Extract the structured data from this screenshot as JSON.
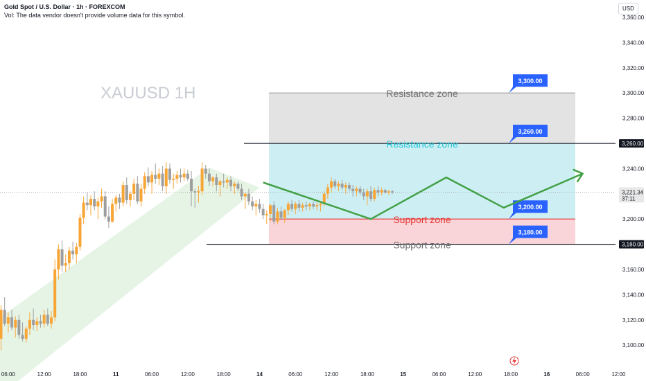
{
  "header": {
    "title": "Gold Spot / U.S. Dollar · 1h · FOREXCOM",
    "volume_note": "Vol: The data vendor doesn't provide volume data for this symbol.",
    "currency_button": "USD"
  },
  "colors": {
    "bull": "#f7a535",
    "bear": "#9e9e9e",
    "channel": "#e6f4e6",
    "resistance_upper": "#e3e3e3",
    "resistance_lower": "#cdeff3",
    "support": "#f9d4d8",
    "arrow": "#43a047",
    "label_badge": "#2962ff",
    "support_text": "#e53935",
    "resistance_text": "#26c6da"
  },
  "chart_data": {
    "type": "candlestick",
    "symbol_watermark": "XAUUSD 1H",
    "ylim": [
      3090,
      3365
    ],
    "y_ticks": [
      3100,
      3120,
      3140,
      3160,
      3180,
      3200,
      3220,
      3240,
      3260,
      3280,
      3300,
      3320,
      3340,
      3360
    ],
    "y_tick_labels": [
      "3,100.00",
      "3,120.00",
      "3,140.00",
      "3,160.00",
      "3,180.00",
      "3,200.00",
      "3,220.00",
      "3,240.00",
      "3,260.00",
      "3,280.00",
      "3,300.00",
      "3,320.00",
      "3,340.00",
      "3,360.00"
    ],
    "x_tick_labels": [
      "06:00",
      "12:00",
      "18:00",
      "11",
      "06:00",
      "12:00",
      "18:00",
      "14",
      "06:00",
      "12:00",
      "18:00",
      "15",
      "06:00",
      "12:00",
      "18:00",
      "16",
      "06:00",
      "12:00"
    ],
    "x_tick_slots": [
      2,
      12,
      22,
      32,
      42,
      52,
      62,
      72,
      82,
      92,
      102,
      112,
      122,
      132,
      142,
      152,
      162,
      172
    ],
    "candles": [
      {
        "o": 3105,
        "h": 3132,
        "l": 3096,
        "c": 3128
      },
      {
        "o": 3128,
        "h": 3138,
        "l": 3115,
        "c": 3117
      },
      {
        "o": 3117,
        "h": 3126,
        "l": 3110,
        "c": 3122
      },
      {
        "o": 3122,
        "h": 3128,
        "l": 3112,
        "c": 3114
      },
      {
        "o": 3114,
        "h": 3123,
        "l": 3106,
        "c": 3120
      },
      {
        "o": 3120,
        "h": 3124,
        "l": 3105,
        "c": 3108
      },
      {
        "o": 3108,
        "h": 3118,
        "l": 3103,
        "c": 3105
      },
      {
        "o": 3105,
        "h": 3115,
        "l": 3102,
        "c": 3113
      },
      {
        "o": 3113,
        "h": 3126,
        "l": 3108,
        "c": 3120
      },
      {
        "o": 3120,
        "h": 3129,
        "l": 3112,
        "c": 3116
      },
      {
        "o": 3116,
        "h": 3122,
        "l": 3111,
        "c": 3119
      },
      {
        "o": 3119,
        "h": 3124,
        "l": 3114,
        "c": 3117
      },
      {
        "o": 3117,
        "h": 3128,
        "l": 3114,
        "c": 3124
      },
      {
        "o": 3124,
        "h": 3129,
        "l": 3115,
        "c": 3117
      },
      {
        "o": 3117,
        "h": 3127,
        "l": 3113,
        "c": 3122
      },
      {
        "o": 3122,
        "h": 3168,
        "l": 3119,
        "c": 3160
      },
      {
        "o": 3160,
        "h": 3180,
        "l": 3152,
        "c": 3176
      },
      {
        "o": 3176,
        "h": 3183,
        "l": 3158,
        "c": 3163
      },
      {
        "o": 3163,
        "h": 3172,
        "l": 3158,
        "c": 3165
      },
      {
        "o": 3165,
        "h": 3178,
        "l": 3160,
        "c": 3175
      },
      {
        "o": 3175,
        "h": 3182,
        "l": 3168,
        "c": 3172
      },
      {
        "o": 3172,
        "h": 3181,
        "l": 3165,
        "c": 3178
      },
      {
        "o": 3178,
        "h": 3204,
        "l": 3175,
        "c": 3201
      },
      {
        "o": 3201,
        "h": 3218,
        "l": 3196,
        "c": 3213
      },
      {
        "o": 3213,
        "h": 3221,
        "l": 3207,
        "c": 3211
      },
      {
        "o": 3211,
        "h": 3219,
        "l": 3203,
        "c": 3216
      },
      {
        "o": 3216,
        "h": 3222,
        "l": 3207,
        "c": 3210
      },
      {
        "o": 3210,
        "h": 3217,
        "l": 3200,
        "c": 3214
      },
      {
        "o": 3214,
        "h": 3224,
        "l": 3209,
        "c": 3218
      },
      {
        "o": 3218,
        "h": 3222,
        "l": 3200,
        "c": 3202
      },
      {
        "o": 3202,
        "h": 3210,
        "l": 3193,
        "c": 3198
      },
      {
        "o": 3198,
        "h": 3216,
        "l": 3197,
        "c": 3212
      },
      {
        "o": 3212,
        "h": 3219,
        "l": 3206,
        "c": 3217
      },
      {
        "o": 3217,
        "h": 3220,
        "l": 3208,
        "c": 3213
      },
      {
        "o": 3213,
        "h": 3230,
        "l": 3210,
        "c": 3227
      },
      {
        "o": 3227,
        "h": 3233,
        "l": 3212,
        "c": 3215
      },
      {
        "o": 3215,
        "h": 3222,
        "l": 3210,
        "c": 3220
      },
      {
        "o": 3220,
        "h": 3232,
        "l": 3215,
        "c": 3228
      },
      {
        "o": 3228,
        "h": 3234,
        "l": 3212,
        "c": 3214
      },
      {
        "o": 3214,
        "h": 3228,
        "l": 3210,
        "c": 3224
      },
      {
        "o": 3224,
        "h": 3237,
        "l": 3220,
        "c": 3234
      },
      {
        "o": 3234,
        "h": 3241,
        "l": 3226,
        "c": 3229
      },
      {
        "o": 3229,
        "h": 3238,
        "l": 3220,
        "c": 3235
      },
      {
        "o": 3235,
        "h": 3244,
        "l": 3228,
        "c": 3232
      },
      {
        "o": 3232,
        "h": 3240,
        "l": 3227,
        "c": 3236
      },
      {
        "o": 3236,
        "h": 3242,
        "l": 3222,
        "c": 3226
      },
      {
        "o": 3226,
        "h": 3245,
        "l": 3220,
        "c": 3240
      },
      {
        "o": 3240,
        "h": 3244,
        "l": 3228,
        "c": 3231
      },
      {
        "o": 3231,
        "h": 3236,
        "l": 3224,
        "c": 3232
      },
      {
        "o": 3232,
        "h": 3238,
        "l": 3228,
        "c": 3235
      },
      {
        "o": 3235,
        "h": 3240,
        "l": 3229,
        "c": 3233
      },
      {
        "o": 3233,
        "h": 3240,
        "l": 3230,
        "c": 3236
      },
      {
        "o": 3236,
        "h": 3239,
        "l": 3230,
        "c": 3232
      },
      {
        "o": 3232,
        "h": 3238,
        "l": 3210,
        "c": 3222
      },
      {
        "o": 3222,
        "h": 3224,
        "l": 3209,
        "c": 3221
      },
      {
        "o": 3221,
        "h": 3226,
        "l": 3213,
        "c": 3222
      },
      {
        "o": 3222,
        "h": 3245,
        "l": 3219,
        "c": 3240
      },
      {
        "o": 3240,
        "h": 3243,
        "l": 3232,
        "c": 3236
      },
      {
        "o": 3236,
        "h": 3240,
        "l": 3226,
        "c": 3230
      },
      {
        "o": 3230,
        "h": 3234,
        "l": 3226,
        "c": 3233
      },
      {
        "o": 3233,
        "h": 3236,
        "l": 3222,
        "c": 3227
      },
      {
        "o": 3227,
        "h": 3231,
        "l": 3218,
        "c": 3230
      },
      {
        "o": 3230,
        "h": 3236,
        "l": 3225,
        "c": 3229
      },
      {
        "o": 3229,
        "h": 3233,
        "l": 3224,
        "c": 3231
      },
      {
        "o": 3231,
        "h": 3234,
        "l": 3222,
        "c": 3226
      },
      {
        "o": 3226,
        "h": 3230,
        "l": 3220,
        "c": 3228
      },
      {
        "o": 3228,
        "h": 3230,
        "l": 3222,
        "c": 3224
      },
      {
        "o": 3224,
        "h": 3228,
        "l": 3215,
        "c": 3218
      },
      {
        "o": 3218,
        "h": 3221,
        "l": 3208,
        "c": 3220
      },
      {
        "o": 3220,
        "h": 3224,
        "l": 3211,
        "c": 3214
      },
      {
        "o": 3214,
        "h": 3218,
        "l": 3207,
        "c": 3210
      },
      {
        "o": 3210,
        "h": 3215,
        "l": 3203,
        "c": 3212
      },
      {
        "o": 3212,
        "h": 3216,
        "l": 3205,
        "c": 3208
      },
      {
        "o": 3208,
        "h": 3212,
        "l": 3200,
        "c": 3203
      },
      {
        "o": 3203,
        "h": 3207,
        "l": 3196,
        "c": 3204
      },
      {
        "o": 3204,
        "h": 3212,
        "l": 3198,
        "c": 3211
      },
      {
        "o": 3211,
        "h": 3214,
        "l": 3196,
        "c": 3198
      },
      {
        "o": 3198,
        "h": 3209,
        "l": 3196,
        "c": 3206
      },
      {
        "o": 3206,
        "h": 3210,
        "l": 3199,
        "c": 3201
      },
      {
        "o": 3201,
        "h": 3208,
        "l": 3197,
        "c": 3207
      },
      {
        "o": 3207,
        "h": 3214,
        "l": 3203,
        "c": 3212
      },
      {
        "o": 3212,
        "h": 3215,
        "l": 3206,
        "c": 3208
      },
      {
        "o": 3208,
        "h": 3214,
        "l": 3204,
        "c": 3212
      },
      {
        "o": 3212,
        "h": 3215,
        "l": 3206,
        "c": 3209
      },
      {
        "o": 3209,
        "h": 3213,
        "l": 3206,
        "c": 3211
      },
      {
        "o": 3211,
        "h": 3214,
        "l": 3207,
        "c": 3210
      },
      {
        "o": 3210,
        "h": 3213,
        "l": 3207,
        "c": 3212
      },
      {
        "o": 3212,
        "h": 3214,
        "l": 3208,
        "c": 3210
      },
      {
        "o": 3210,
        "h": 3213,
        "l": 3207,
        "c": 3211
      },
      {
        "o": 3211,
        "h": 3214,
        "l": 3206,
        "c": 3212
      },
      {
        "o": 3212,
        "h": 3222,
        "l": 3210,
        "c": 3220
      },
      {
        "o": 3220,
        "h": 3228,
        "l": 3216,
        "c": 3225
      },
      {
        "o": 3225,
        "h": 3233,
        "l": 3221,
        "c": 3230
      },
      {
        "o": 3230,
        "h": 3232,
        "l": 3224,
        "c": 3226
      },
      {
        "o": 3226,
        "h": 3230,
        "l": 3222,
        "c": 3228
      },
      {
        "o": 3228,
        "h": 3231,
        "l": 3223,
        "c": 3225
      },
      {
        "o": 3225,
        "h": 3229,
        "l": 3220,
        "c": 3227
      },
      {
        "o": 3227,
        "h": 3229,
        "l": 3222,
        "c": 3224
      },
      {
        "o": 3224,
        "h": 3227,
        "l": 3218,
        "c": 3222
      },
      {
        "o": 3222,
        "h": 3226,
        "l": 3218,
        "c": 3224
      },
      {
        "o": 3224,
        "h": 3226,
        "l": 3219,
        "c": 3221
      },
      {
        "o": 3221,
        "h": 3224,
        "l": 3215,
        "c": 3218
      },
      {
        "o": 3218,
        "h": 3224,
        "l": 3211,
        "c": 3222
      },
      {
        "o": 3222,
        "h": 3226,
        "l": 3214,
        "c": 3216
      },
      {
        "o": 3216,
        "h": 3225,
        "l": 3214,
        "c": 3223
      },
      {
        "o": 3223,
        "h": 3226,
        "l": 3218,
        "c": 3221
      },
      {
        "o": 3221,
        "h": 3225,
        "l": 3219,
        "c": 3223
      },
      {
        "o": 3223,
        "h": 3224,
        "l": 3220,
        "c": 3221
      },
      {
        "o": 3221,
        "h": 3223,
        "l": 3219,
        "c": 3222
      },
      {
        "o": 3222,
        "h": 3223,
        "l": 3220,
        "c": 3221
      }
    ],
    "zones": [
      {
        "name": "Resistance zone",
        "from": 3260,
        "to": 3300,
        "kind": "resistance_upper"
      },
      {
        "name": "Resistance zone",
        "from": 3200,
        "to": 3260,
        "kind": "resistance_lower"
      },
      {
        "name": "Support zone",
        "from": 3180,
        "to": 3200,
        "kind": "support"
      }
    ],
    "horizontal_lines": [
      {
        "value": 3300,
        "label": "Resistance zone",
        "color": "#9e9e9e"
      },
      {
        "value": 3260,
        "label": "Resistance zone",
        "color": "#131722"
      },
      {
        "value": 3200,
        "label": "Support zone",
        "color": "#e53935"
      },
      {
        "value": 3180,
        "label": "Support zone",
        "color": "#131722"
      }
    ],
    "price_badges": [
      "3,300.00",
      "3,260.00",
      "3,200.00",
      "3,180.00"
    ],
    "axis_badges": [
      {
        "value": 3260,
        "label": "3,260.00"
      },
      {
        "value": 3180,
        "label": "3,180.00"
      }
    ],
    "current_price": {
      "value": 3221.34,
      "label": "3,221.34",
      "countdown": "37:11"
    },
    "projection_path": [
      {
        "slot": 73,
        "price": 3229
      },
      {
        "slot": 103,
        "price": 3200
      },
      {
        "slot": 124,
        "price": 3233
      },
      {
        "slot": 140,
        "price": 3209
      },
      {
        "slot": 162,
        "price": 3236
      }
    ]
  }
}
